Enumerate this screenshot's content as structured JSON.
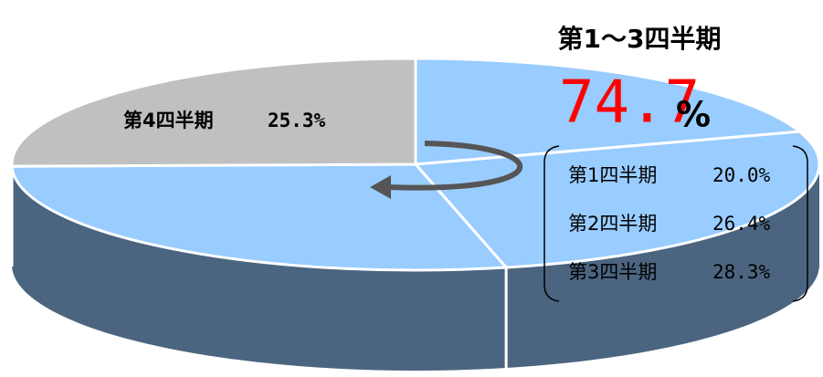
{
  "chart_data": {
    "type": "pie",
    "categories": [
      "第1四半期",
      "第2四半期",
      "第3四半期",
      "第4四半期"
    ],
    "values": [
      20.0,
      26.4,
      28.3,
      25.3
    ],
    "value_labels": [
      "20.0%",
      "26.4%",
      "28.3%",
      "25.3%"
    ],
    "colors": [
      "#99ccff",
      "#99ccff",
      "#99ccff",
      "#c0c0c0"
    ],
    "side_color": "#4b6580",
    "group": {
      "label": "第1～3四半期",
      "value": 74.7,
      "unit": "%",
      "value_color": "#ff0000"
    }
  }
}
